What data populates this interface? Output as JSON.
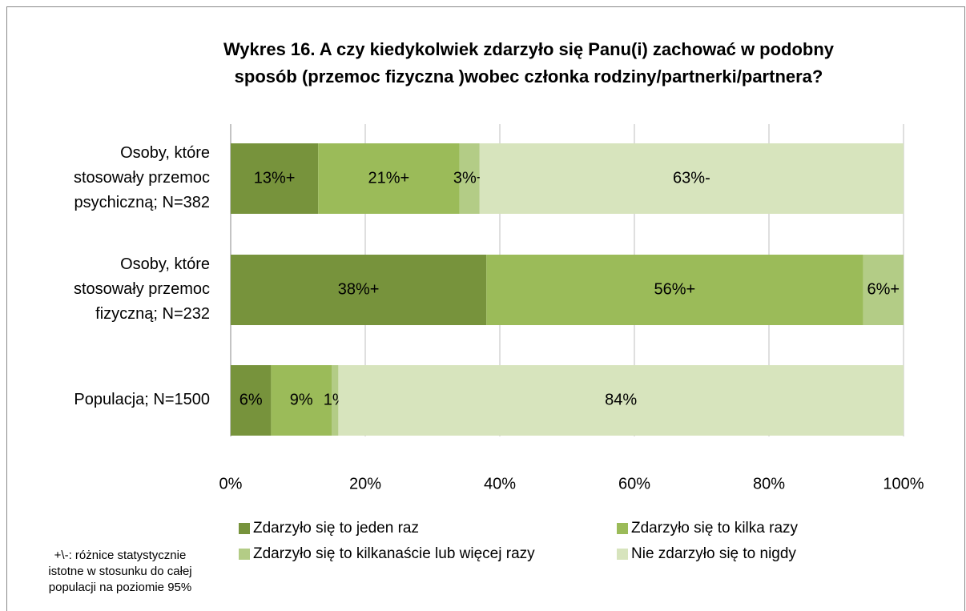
{
  "chart_data": {
    "type": "stacked_barh",
    "title": "Wykres 16. A czy kiedykolwiek zdarzyło się Panu(i) zachować w podobny sposób (przemoc fizyczna )wobec członka rodziny/partnerki/partnera?",
    "categories": [
      "Osoby, które stosowały przemoc psychiczną; N=382",
      "Osoby, które stosowały przemoc fizyczną; N=232",
      "Populacja; N=1500"
    ],
    "series": [
      {
        "name": "Zdarzyło się to jeden raz",
        "color": "#77933c",
        "values": [
          13,
          38,
          6
        ],
        "value_labels": [
          "13%+",
          "38%+",
          "6%"
        ]
      },
      {
        "name": "Zdarzyło się to kilka razy",
        "color": "#9bbb59",
        "values": [
          21,
          56,
          9
        ],
        "value_labels": [
          "21%+",
          "56%+",
          "9%"
        ]
      },
      {
        "name": "Zdarzyło się to kilkanaście lub więcej razy",
        "color": "#b3cc86",
        "values": [
          3,
          6,
          1
        ],
        "value_labels": [
          "3%+",
          "6%+",
          "1%"
        ]
      },
      {
        "name": "Nie zdarzyło się to nigdy",
        "color": "#d7e4bd",
        "values": [
          63,
          null,
          84
        ],
        "value_labels": [
          "63%-",
          null,
          "84%"
        ]
      }
    ],
    "xlim": [
      0,
      100
    ],
    "xticks": [
      {
        "value": 0,
        "label": "0%"
      },
      {
        "value": 20,
        "label": "20%"
      },
      {
        "value": 40,
        "label": "40%"
      },
      {
        "value": 60,
        "label": "60%"
      },
      {
        "value": 80,
        "label": "80%"
      },
      {
        "value": 100,
        "label": "100%"
      }
    ],
    "grid": true,
    "annotation": "+\\-: różnice statystycznie istotne w stosunku do całej populacji na poziomie 95%"
  }
}
